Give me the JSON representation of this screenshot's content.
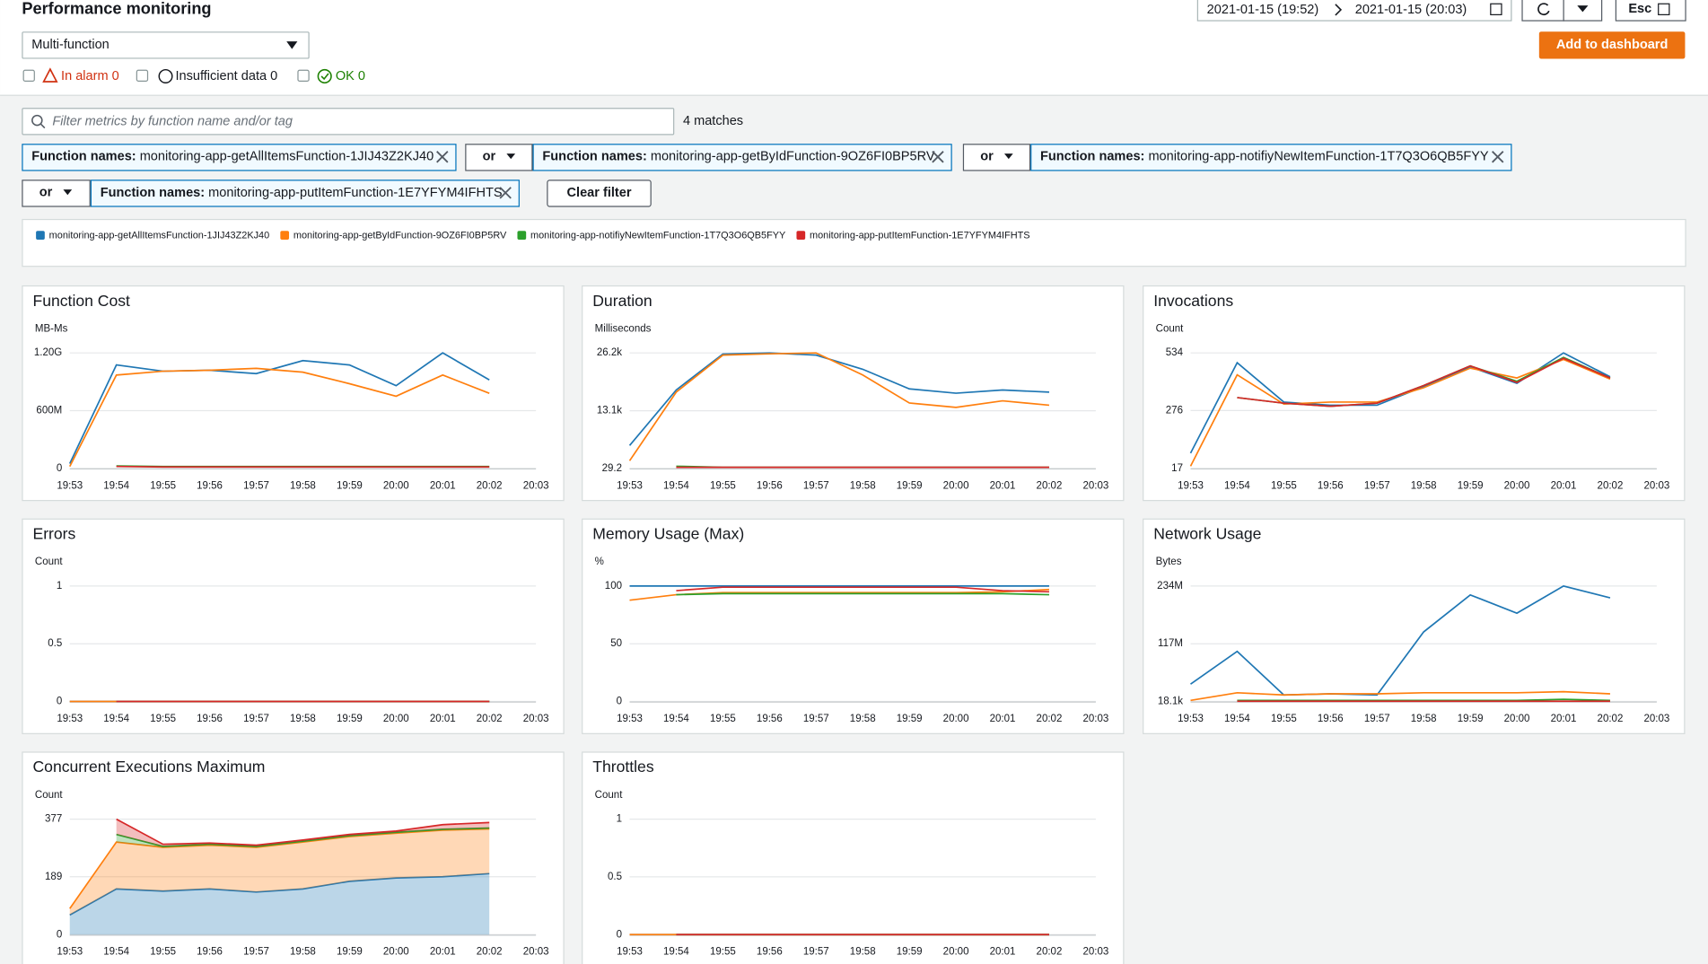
{
  "header": {
    "title": "Performance monitoring",
    "function_selector": "Multi-function",
    "status": [
      {
        "label": "In alarm",
        "count": 0
      },
      {
        "label": "Insufficient data",
        "count": 0
      },
      {
        "label": "OK",
        "count": 0
      }
    ],
    "time_range": {
      "start": "2021-01-15 (19:52)",
      "end": "2021-01-15 (20:03)"
    },
    "esc": "Esc",
    "add_button": "Add to dashboard"
  },
  "search": {
    "placeholder": "Filter metrics by function name and/or tag",
    "matches": "4 matches"
  },
  "filters": [
    {
      "key": "Function names:",
      "value": "monitoring-app-getAllItemsFunction-1JIJ43Z2KJ40"
    },
    {
      "operator": "or",
      "key": "Function names:",
      "value": "monitoring-app-getByIdFunction-9OZ6FI0BP5RV"
    },
    {
      "operator": "or",
      "key": "Function names:",
      "value": "monitoring-app-notifiyNewItemFunction-1T7Q3O6QB5FYY"
    },
    {
      "operator": "or",
      "key": "Function names:",
      "value": "monitoring-app-putItemFunction-1E7YFYM4IFHTS"
    }
  ],
  "clear_filter": "Clear filter",
  "legend": [
    {
      "name": "monitoring-app-getAllItemsFunction-1JIJ43Z2KJ40",
      "color": "#1f77b4"
    },
    {
      "name": "monitoring-app-getByIdFunction-9OZ6FI0BP5RV",
      "color": "#ff7f0e"
    },
    {
      "name": "monitoring-app-notifiyNewItemFunction-1T7Q3O6QB5FYY",
      "color": "#2ca02c"
    },
    {
      "name": "monitoring-app-putItemFunction-1E7YFYM4IFHTS",
      "color": "#d62728"
    }
  ],
  "chart_data": [
    {
      "type": "line",
      "title": "Function Cost",
      "y_label": "MB-Ms",
      "categories": [
        "19:53",
        "19:54",
        "19:55",
        "19:56",
        "19:57",
        "19:58",
        "19:59",
        "20:00",
        "20:01",
        "20:02",
        "20:03"
      ],
      "ylim": [
        0,
        1200000000
      ],
      "yticks": [
        0,
        {
          "value": 600000000,
          "label": "600M"
        },
        {
          "value": 1200000000,
          "label": "1.20G"
        }
      ],
      "series": [
        {
          "values": [
            50000000,
            1075000000,
            1010000000,
            1020000000,
            985000000,
            1120000000,
            1075000000,
            860000000,
            1200000000,
            920000000,
            null
          ]
        },
        {
          "values": [
            20000000,
            970000000,
            1010000000,
            1020000000,
            1040000000,
            1000000000,
            880000000,
            750000000,
            970000000,
            780000000,
            null
          ]
        },
        {
          "values": [
            null,
            25000000,
            20000000,
            20000000,
            20000000,
            20000000,
            20000000,
            20000000,
            20000000,
            20000000,
            null
          ]
        },
        {
          "values": [
            null,
            20000000,
            15000000,
            15000000,
            15000000,
            15000000,
            15000000,
            15000000,
            15000000,
            15000000,
            null
          ]
        }
      ]
    },
    {
      "type": "line",
      "title": "Duration",
      "y_label": "Milliseconds",
      "categories": [
        "19:53",
        "19:54",
        "19:55",
        "19:56",
        "19:57",
        "19:58",
        "19:59",
        "20:00",
        "20:01",
        "20:02",
        "20:03"
      ],
      "ylim": [
        29.2,
        26200
      ],
      "yticks": [
        29.2,
        {
          "value": 13100,
          "label": "13.1k"
        },
        {
          "value": 26200,
          "label": "26.2k"
        }
      ],
      "series": [
        {
          "values": [
            5220,
            17800,
            25950,
            26200,
            25700,
            22500,
            18050,
            17070,
            17800,
            17310,
            null
          ]
        },
        {
          "values": [
            1760,
            17310,
            25700,
            26000,
            26200,
            21200,
            14850,
            13860,
            15340,
            14350,
            null
          ]
        },
        {
          "values": [
            null,
            520,
            276,
            276,
            276,
            276,
            276,
            276,
            276,
            276,
            null
          ]
        },
        {
          "values": [
            null,
            276,
            276,
            276,
            276,
            276,
            276,
            276,
            276,
            276,
            null
          ]
        }
      ]
    },
    {
      "type": "line",
      "title": "Invocations",
      "y_label": "Count",
      "categories": [
        "19:53",
        "19:54",
        "19:55",
        "19:56",
        "19:57",
        "19:58",
        "19:59",
        "20:00",
        "20:01",
        "20:02",
        "20:03"
      ],
      "ylim": [
        17,
        534
      ],
      "yticks": [
        17,
        276,
        534
      ],
      "series": [
        {
          "values": [
            85,
            490,
            314,
            300,
            300,
            383,
            471,
            398,
            534,
            427,
            null
          ]
        },
        {
          "values": [
            27,
            436,
            305,
            314,
            314,
            378,
            466,
            422,
            505,
            417,
            null
          ]
        },
        {
          "values": [
            null,
            334,
            309,
            295,
            309,
            388,
            476,
            407,
            514,
            422,
            null
          ]
        },
        {
          "values": [
            null,
            334,
            309,
            295,
            309,
            388,
            476,
            402,
            510,
            422,
            null
          ]
        }
      ]
    },
    {
      "type": "line",
      "title": "Errors",
      "y_label": "Count",
      "categories": [
        "19:53",
        "19:54",
        "19:55",
        "19:56",
        "19:57",
        "19:58",
        "19:59",
        "20:00",
        "20:01",
        "20:02",
        "20:03"
      ],
      "ylim": [
        0,
        1
      ],
      "yticks": [
        0,
        0.5,
        1
      ],
      "series": [
        {
          "values": [
            0,
            0,
            0,
            0,
            0,
            0,
            0,
            0,
            0,
            0,
            null
          ]
        },
        {
          "values": [
            0,
            0,
            0,
            0,
            0,
            0,
            0,
            0,
            0,
            0,
            null
          ]
        },
        {
          "values": [
            null,
            0,
            0,
            0,
            0,
            0,
            0,
            0,
            0,
            0,
            null
          ]
        },
        {
          "values": [
            null,
            0,
            0,
            0,
            0,
            0,
            0,
            0,
            0,
            0,
            null
          ]
        }
      ]
    },
    {
      "type": "line",
      "title": "Memory Usage (Max)",
      "y_label": "%",
      "categories": [
        "19:53",
        "19:54",
        "19:55",
        "19:56",
        "19:57",
        "19:58",
        "19:59",
        "20:00",
        "20:01",
        "20:02",
        "20:03"
      ],
      "ylim": [
        0,
        100
      ],
      "yticks": [
        0,
        50,
        100
      ],
      "series": [
        {
          "values": [
            100,
            100,
            100,
            100,
            100,
            100,
            100,
            100,
            100,
            100,
            null
          ]
        },
        {
          "values": [
            87.7,
            92.5,
            94.3,
            94.3,
            94.3,
            94.3,
            94.3,
            94.3,
            95,
            97,
            null
          ]
        },
        {
          "values": [
            null,
            92.5,
            93.4,
            93.4,
            93.4,
            93.4,
            93.4,
            93.4,
            93.4,
            92.5,
            null
          ]
        },
        {
          "values": [
            null,
            96,
            99,
            99,
            99,
            99,
            99,
            99,
            96,
            95,
            null
          ]
        }
      ]
    },
    {
      "type": "line",
      "title": "Network Usage",
      "y_label": "Bytes",
      "categories": [
        "19:53",
        "19:54",
        "19:55",
        "19:56",
        "19:57",
        "19:58",
        "19:59",
        "20:00",
        "20:01",
        "20:02",
        "20:03"
      ],
      "ylim": [
        18100,
        234000000
      ],
      "yticks": [
        {
          "value": 18100,
          "label": "18.1k"
        },
        {
          "value": 117000000,
          "label": "117M"
        },
        {
          "value": 234000000,
          "label": "234M"
        }
      ],
      "series": [
        {
          "values": [
            35300000,
            101500000,
            13300000,
            15500000,
            13300000,
            141000000,
            216000000,
            179000000,
            234000000,
            210000000,
            null
          ]
        },
        {
          "values": [
            2200000,
            17700000,
            13200000,
            15500000,
            15500000,
            17700000,
            17700000,
            17700000,
            19900000,
            15500000,
            null
          ]
        },
        {
          "values": [
            null,
            2200000,
            2200000,
            2200000,
            2200000,
            2200000,
            2200000,
            2200000,
            4400000,
            2200000,
            null
          ]
        },
        {
          "values": [
            null,
            500000,
            500000,
            500000,
            500000,
            500000,
            500000,
            500000,
            500000,
            500000,
            null
          ]
        }
      ]
    },
    {
      "type": "area",
      "title": "Concurrent Executions Maximum",
      "y_label": "Count",
      "categories": [
        "19:53",
        "19:54",
        "19:55",
        "19:56",
        "19:57",
        "19:58",
        "19:59",
        "20:00",
        "20:01",
        "20:02",
        "20:03"
      ],
      "ylim": [
        0,
        377
      ],
      "yticks": [
        0,
        189,
        377
      ],
      "series": [
        {
          "values": [
            64,
            149,
            142,
            149,
            139,
            149,
            174,
            185,
            189,
            199,
            null
          ]
        },
        {
          "values": [
            21,
            153,
            143,
            143,
            146,
            153,
            146,
            146,
            152,
            146,
            null
          ]
        },
        {
          "values": [
            null,
            25,
            3,
            3,
            3,
            3,
            3,
            3,
            3,
            3,
            null
          ]
        },
        {
          "values": [
            null,
            50,
            7,
            4,
            4,
            4,
            4,
            4,
            15,
            18,
            null
          ]
        }
      ]
    },
    {
      "type": "line",
      "title": "Throttles",
      "y_label": "Count",
      "categories": [
        "19:53",
        "19:54",
        "19:55",
        "19:56",
        "19:57",
        "19:58",
        "19:59",
        "20:00",
        "20:01",
        "20:02",
        "20:03"
      ],
      "ylim": [
        0,
        1
      ],
      "yticks": [
        0,
        0.5,
        1
      ],
      "series": [
        {
          "values": [
            0,
            0,
            0,
            0,
            0,
            0,
            0,
            0,
            0,
            0,
            null
          ]
        },
        {
          "values": [
            0,
            0,
            0,
            0,
            0,
            0,
            0,
            0,
            0,
            0,
            null
          ]
        },
        {
          "values": [
            null,
            0,
            0,
            0,
            0,
            0,
            0,
            0,
            0,
            0,
            null
          ]
        },
        {
          "values": [
            null,
            0,
            0,
            0,
            0,
            0,
            0,
            0,
            0,
            0,
            null
          ]
        }
      ]
    }
  ]
}
